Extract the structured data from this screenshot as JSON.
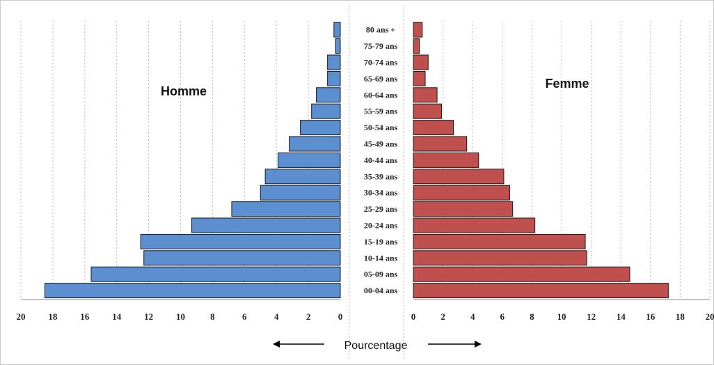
{
  "chart_data": {
    "type": "bar",
    "orientation": "horizontal",
    "layout": "population-pyramid",
    "categories": [
      "80 ans +",
      "75-79 ans",
      "70-74 ans",
      "65-69 ans",
      "60-64 ans",
      "55-59 ans",
      "50-54 ans",
      "45-49 ans",
      "40-44 ans",
      "35-39 ans",
      "30-34 ans",
      "25-29 ans",
      "20-24 ans",
      "15-19 ans",
      "10-14 ans",
      "05-09 ans",
      "00-04 ans"
    ],
    "series": [
      {
        "name": "Homme",
        "color": "#5B8FD0",
        "values": [
          0.4,
          0.3,
          0.8,
          0.8,
          1.5,
          1.8,
          2.5,
          3.2,
          3.9,
          4.7,
          5.0,
          6.8,
          9.3,
          12.5,
          12.3,
          15.6,
          18.5
        ]
      },
      {
        "name": "Femme",
        "color": "#C0504D",
        "values": [
          0.6,
          0.4,
          1.0,
          0.8,
          1.6,
          1.9,
          2.7,
          3.6,
          4.4,
          6.1,
          6.5,
          6.7,
          8.2,
          11.6,
          11.7,
          14.6,
          17.2
        ]
      }
    ],
    "xlim": [
      0,
      20
    ],
    "xticks": [
      0,
      2,
      4,
      6,
      8,
      10,
      12,
      14,
      16,
      18,
      20
    ],
    "xlabel": "Pourcentage",
    "grid": true
  }
}
